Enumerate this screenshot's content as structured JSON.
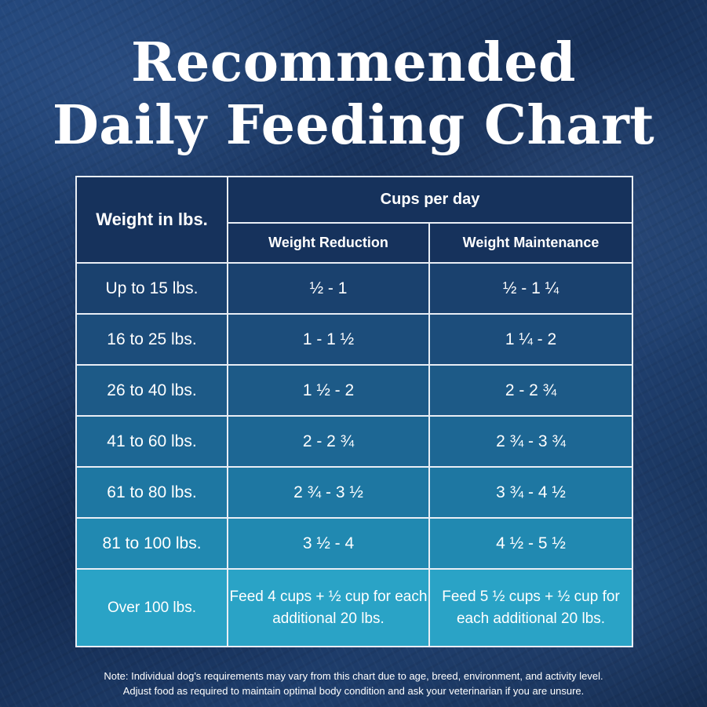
{
  "title": {
    "line1": "Recommended",
    "line2": "Daily Feeding Chart"
  },
  "table": {
    "weight_header": "Weight in lbs.",
    "cups_header": "Cups per day",
    "reduction_header": "Weight Reduction",
    "maintenance_header": "Weight Maintenance",
    "rows": [
      {
        "weight": "Up to 15 lbs.",
        "reduction": "½  - 1",
        "maintenance": "½  - 1 ¼"
      },
      {
        "weight": "16 to 25 lbs.",
        "reduction": "1  - 1 ½",
        "maintenance": "1 ¼  - 2"
      },
      {
        "weight": "26 to 40 lbs.",
        "reduction": "1 ½  - 2",
        "maintenance": "2 - 2 ¾"
      },
      {
        "weight": "41 to 60 lbs.",
        "reduction": "2 - 2 ¾",
        "maintenance": "2 ¾ - 3 ¾"
      },
      {
        "weight": "61 to 80 lbs.",
        "reduction": "2 ¾  - 3 ½",
        "maintenance": "3 ¾  - 4 ½"
      },
      {
        "weight": "81 to 100 lbs.",
        "reduction": "3 ½ - 4",
        "maintenance": "4 ½ - 5 ½"
      },
      {
        "weight": "Over 100 lbs.",
        "reduction": "Feed 4 cups + ½ cup for each additional 20 lbs.",
        "maintenance": "Feed 5 ½ cups + ½ cup for each additional 20 lbs."
      }
    ]
  },
  "note": {
    "line1": "Note: Individual dog's requirements may vary from this chart due to age, breed, environment, and activity level.",
    "line2": "Adjust food as required to maintain optimal body condition and ask your veterinarian if you are unsure."
  },
  "colors": {
    "background": "#1b3760",
    "header": "#16325c",
    "row_gradient": [
      "#1a416e",
      "#1c4d7b",
      "#1d5a87",
      "#1d6794",
      "#1e77a2",
      "#2189b1",
      "#2aa3c6"
    ],
    "border": "#e9eef5",
    "text": "#ffffff"
  }
}
